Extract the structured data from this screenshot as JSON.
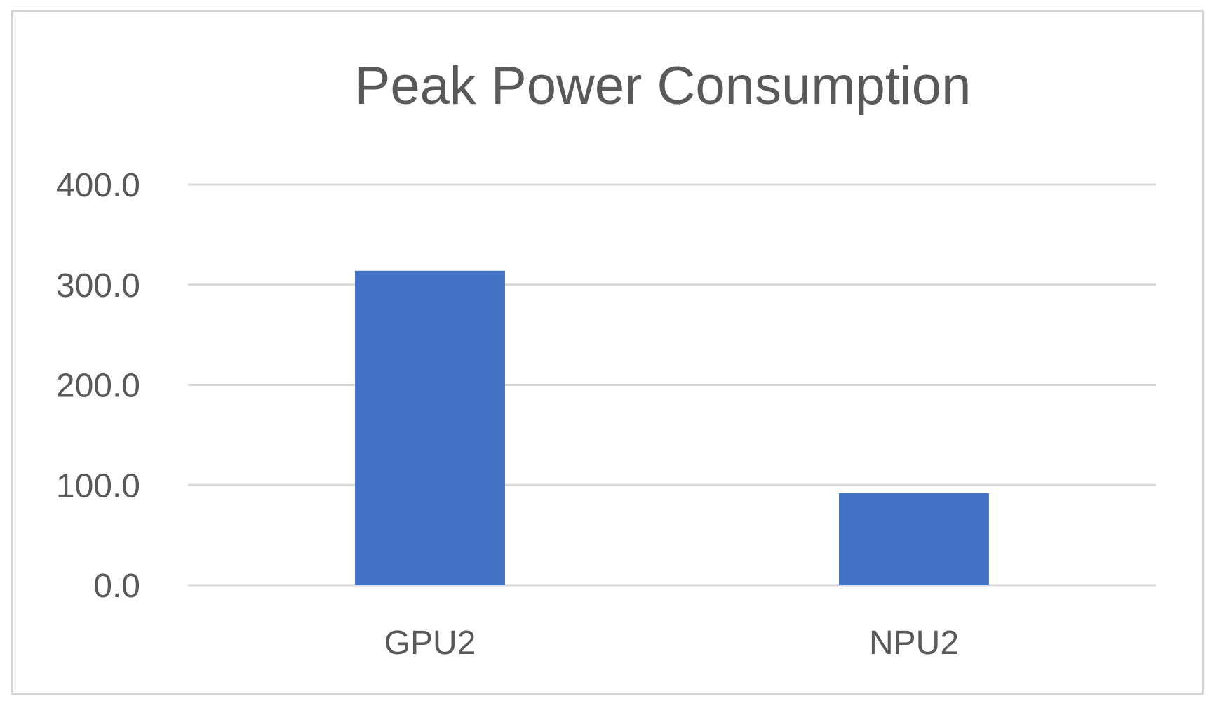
{
  "chart_data": {
    "type": "bar",
    "title": "Peak Power Consumption",
    "xlabel": "",
    "ylabel": "",
    "categories": [
      "GPU2",
      "NPU2"
    ],
    "values": [
      314.0,
      92.0
    ],
    "ylim": [
      0,
      400
    ],
    "yticks": [
      "0.0",
      "100.0",
      "200.0",
      "300.0",
      "400.0"
    ],
    "grid": true,
    "legend": "none",
    "bar_color": "#4472C4",
    "gridline_color": "#D9D9D9",
    "text_color": "#595959"
  }
}
